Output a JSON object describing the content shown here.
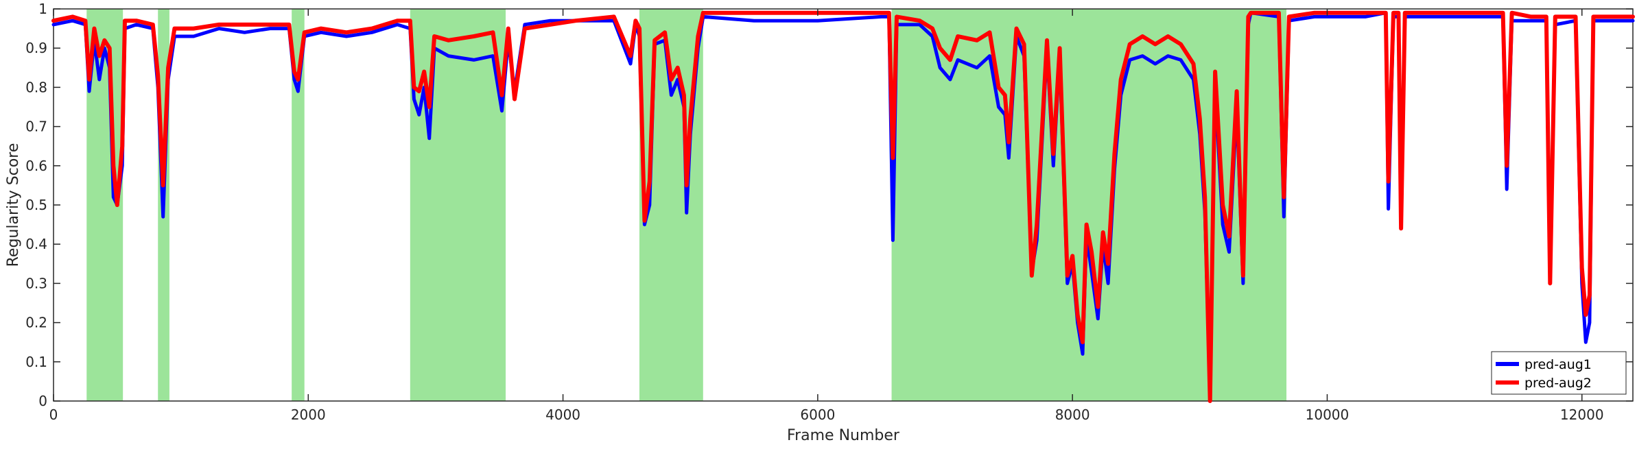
{
  "chart_data": {
    "type": "line",
    "title": "",
    "xlabel": "Frame Number",
    "ylabel": "Regularity Score",
    "xlim": [
      0,
      12400
    ],
    "ylim": [
      0,
      1
    ],
    "x_ticks": [
      0,
      2000,
      4000,
      6000,
      8000,
      10000,
      12000
    ],
    "x_tick_labels": [
      "0",
      "2000",
      "4000",
      "6000",
      "8000",
      "10000",
      "12000"
    ],
    "y_ticks": [
      0,
      0.1,
      0.2,
      0.3,
      0.4,
      0.5,
      0.6,
      0.7,
      0.8,
      0.9,
      1
    ],
    "y_tick_labels": [
      "0",
      "0.1",
      "0.2",
      "0.3",
      "0.4",
      "0.5",
      "0.6",
      "0.7",
      "0.8",
      "0.9",
      "1"
    ],
    "grid": false,
    "legend_position": "bottom-right",
    "highlight_color": "#9ce49a",
    "highlighted_ranges": [
      [
        260,
        545
      ],
      [
        820,
        910
      ],
      [
        1870,
        1970
      ],
      [
        2800,
        3550
      ],
      [
        4600,
        5100
      ],
      [
        6580,
        9680
      ]
    ],
    "series": [
      {
        "name": "pred-aug1",
        "color": "#0000ff",
        "points": [
          [
            0,
            0.96
          ],
          [
            150,
            0.97
          ],
          [
            250,
            0.96
          ],
          [
            280,
            0.79
          ],
          [
            320,
            0.92
          ],
          [
            360,
            0.82
          ],
          [
            400,
            0.9
          ],
          [
            440,
            0.85
          ],
          [
            470,
            0.52
          ],
          [
            500,
            0.5
          ],
          [
            540,
            0.6
          ],
          [
            560,
            0.95
          ],
          [
            650,
            0.96
          ],
          [
            780,
            0.95
          ],
          [
            820,
            0.8
          ],
          [
            860,
            0.47
          ],
          [
            900,
            0.82
          ],
          [
            950,
            0.93
          ],
          [
            1100,
            0.93
          ],
          [
            1300,
            0.95
          ],
          [
            1500,
            0.94
          ],
          [
            1700,
            0.95
          ],
          [
            1850,
            0.95
          ],
          [
            1890,
            0.82
          ],
          [
            1920,
            0.79
          ],
          [
            1970,
            0.93
          ],
          [
            2100,
            0.94
          ],
          [
            2300,
            0.93
          ],
          [
            2500,
            0.94
          ],
          [
            2700,
            0.96
          ],
          [
            2800,
            0.95
          ],
          [
            2830,
            0.77
          ],
          [
            2870,
            0.73
          ],
          [
            2910,
            0.8
          ],
          [
            2950,
            0.67
          ],
          [
            2990,
            0.9
          ],
          [
            3100,
            0.88
          ],
          [
            3300,
            0.87
          ],
          [
            3450,
            0.88
          ],
          [
            3520,
            0.74
          ],
          [
            3570,
            0.92
          ],
          [
            3620,
            0.79
          ],
          [
            3700,
            0.96
          ],
          [
            3900,
            0.97
          ],
          [
            4100,
            0.97
          ],
          [
            4400,
            0.97
          ],
          [
            4530,
            0.86
          ],
          [
            4570,
            0.96
          ],
          [
            4600,
            0.93
          ],
          [
            4640,
            0.45
          ],
          [
            4680,
            0.5
          ],
          [
            4720,
            0.91
          ],
          [
            4800,
            0.92
          ],
          [
            4850,
            0.78
          ],
          [
            4900,
            0.82
          ],
          [
            4950,
            0.75
          ],
          [
            4970,
            0.48
          ],
          [
            5000,
            0.68
          ],
          [
            5060,
            0.9
          ],
          [
            5100,
            0.98
          ],
          [
            5500,
            0.97
          ],
          [
            6000,
            0.97
          ],
          [
            6500,
            0.98
          ],
          [
            6560,
            0.98
          ],
          [
            6590,
            0.41
          ],
          [
            6620,
            0.96
          ],
          [
            6800,
            0.96
          ],
          [
            6900,
            0.93
          ],
          [
            6960,
            0.85
          ],
          [
            7040,
            0.82
          ],
          [
            7100,
            0.87
          ],
          [
            7250,
            0.85
          ],
          [
            7350,
            0.88
          ],
          [
            7420,
            0.75
          ],
          [
            7470,
            0.73
          ],
          [
            7500,
            0.62
          ],
          [
            7560,
            0.93
          ],
          [
            7620,
            0.88
          ],
          [
            7680,
            0.33
          ],
          [
            7720,
            0.41
          ],
          [
            7800,
            0.9
          ],
          [
            7850,
            0.6
          ],
          [
            7900,
            0.88
          ],
          [
            7960,
            0.3
          ],
          [
            8000,
            0.35
          ],
          [
            8040,
            0.2
          ],
          [
            8080,
            0.12
          ],
          [
            8110,
            0.42
          ],
          [
            8150,
            0.33
          ],
          [
            8200,
            0.21
          ],
          [
            8240,
            0.4
          ],
          [
            8280,
            0.3
          ],
          [
            8330,
            0.59
          ],
          [
            8380,
            0.78
          ],
          [
            8450,
            0.87
          ],
          [
            8550,
            0.88
          ],
          [
            8650,
            0.86
          ],
          [
            8750,
            0.88
          ],
          [
            8850,
            0.87
          ],
          [
            8950,
            0.82
          ],
          [
            9000,
            0.68
          ],
          [
            9040,
            0.48
          ],
          [
            9080,
            0.02
          ],
          [
            9120,
            0.8
          ],
          [
            9180,
            0.45
          ],
          [
            9230,
            0.38
          ],
          [
            9290,
            0.75
          ],
          [
            9340,
            0.3
          ],
          [
            9380,
            0.96
          ],
          [
            9400,
            0.99
          ],
          [
            9620,
            0.98
          ],
          [
            9660,
            0.47
          ],
          [
            9700,
            0.97
          ],
          [
            9900,
            0.98
          ],
          [
            10300,
            0.98
          ],
          [
            10460,
            0.99
          ],
          [
            10480,
            0.49
          ],
          [
            10520,
            0.98
          ],
          [
            10560,
            0.98
          ],
          [
            10580,
            0.45
          ],
          [
            10610,
            0.98
          ],
          [
            11000,
            0.98
          ],
          [
            11380,
            0.98
          ],
          [
            11410,
            0.54
          ],
          [
            11450,
            0.97
          ],
          [
            11600,
            0.97
          ],
          [
            11720,
            0.97
          ],
          [
            11750,
            0.32
          ],
          [
            11790,
            0.96
          ],
          [
            11950,
            0.97
          ],
          [
            12000,
            0.3
          ],
          [
            12030,
            0.15
          ],
          [
            12060,
            0.2
          ],
          [
            12090,
            0.97
          ],
          [
            12250,
            0.97
          ],
          [
            12400,
            0.97
          ]
        ]
      },
      {
        "name": "pred-aug2",
        "color": "#ff0000",
        "points": [
          [
            0,
            0.97
          ],
          [
            150,
            0.98
          ],
          [
            250,
            0.97
          ],
          [
            280,
            0.82
          ],
          [
            320,
            0.95
          ],
          [
            360,
            0.88
          ],
          [
            400,
            0.92
          ],
          [
            440,
            0.9
          ],
          [
            470,
            0.6
          ],
          [
            500,
            0.5
          ],
          [
            540,
            0.65
          ],
          [
            560,
            0.97
          ],
          [
            650,
            0.97
          ],
          [
            780,
            0.96
          ],
          [
            820,
            0.83
          ],
          [
            860,
            0.55
          ],
          [
            900,
            0.85
          ],
          [
            950,
            0.95
          ],
          [
            1100,
            0.95
          ],
          [
            1300,
            0.96
          ],
          [
            1500,
            0.96
          ],
          [
            1700,
            0.96
          ],
          [
            1850,
            0.96
          ],
          [
            1890,
            0.84
          ],
          [
            1920,
            0.82
          ],
          [
            1970,
            0.94
          ],
          [
            2100,
            0.95
          ],
          [
            2300,
            0.94
          ],
          [
            2500,
            0.95
          ],
          [
            2700,
            0.97
          ],
          [
            2800,
            0.97
          ],
          [
            2830,
            0.8
          ],
          [
            2870,
            0.79
          ],
          [
            2910,
            0.84
          ],
          [
            2950,
            0.75
          ],
          [
            2990,
            0.93
          ],
          [
            3100,
            0.92
          ],
          [
            3300,
            0.93
          ],
          [
            3450,
            0.94
          ],
          [
            3520,
            0.78
          ],
          [
            3570,
            0.95
          ],
          [
            3620,
            0.77
          ],
          [
            3700,
            0.95
          ],
          [
            3900,
            0.96
          ],
          [
            4100,
            0.97
          ],
          [
            4400,
            0.98
          ],
          [
            4530,
            0.88
          ],
          [
            4570,
            0.97
          ],
          [
            4600,
            0.95
          ],
          [
            4640,
            0.46
          ],
          [
            4680,
            0.56
          ],
          [
            4720,
            0.92
          ],
          [
            4800,
            0.94
          ],
          [
            4850,
            0.82
          ],
          [
            4900,
            0.85
          ],
          [
            4950,
            0.78
          ],
          [
            4970,
            0.55
          ],
          [
            5000,
            0.72
          ],
          [
            5060,
            0.93
          ],
          [
            5100,
            0.99
          ],
          [
            5500,
            0.99
          ],
          [
            6000,
            0.99
          ],
          [
            6500,
            0.99
          ],
          [
            6560,
            0.99
          ],
          [
            6590,
            0.62
          ],
          [
            6620,
            0.98
          ],
          [
            6800,
            0.97
          ],
          [
            6900,
            0.95
          ],
          [
            6960,
            0.9
          ],
          [
            7040,
            0.87
          ],
          [
            7100,
            0.93
          ],
          [
            7250,
            0.92
          ],
          [
            7350,
            0.94
          ],
          [
            7420,
            0.8
          ],
          [
            7470,
            0.78
          ],
          [
            7500,
            0.66
          ],
          [
            7560,
            0.95
          ],
          [
            7620,
            0.91
          ],
          [
            7680,
            0.32
          ],
          [
            7720,
            0.45
          ],
          [
            7800,
            0.92
          ],
          [
            7850,
            0.63
          ],
          [
            7900,
            0.9
          ],
          [
            7960,
            0.32
          ],
          [
            8000,
            0.37
          ],
          [
            8040,
            0.22
          ],
          [
            8080,
            0.15
          ],
          [
            8110,
            0.45
          ],
          [
            8150,
            0.38
          ],
          [
            8200,
            0.24
          ],
          [
            8240,
            0.43
          ],
          [
            8280,
            0.35
          ],
          [
            8330,
            0.63
          ],
          [
            8380,
            0.82
          ],
          [
            8450,
            0.91
          ],
          [
            8550,
            0.93
          ],
          [
            8650,
            0.91
          ],
          [
            8750,
            0.93
          ],
          [
            8850,
            0.91
          ],
          [
            8950,
            0.86
          ],
          [
            9000,
            0.72
          ],
          [
            9040,
            0.52
          ],
          [
            9080,
            0.0
          ],
          [
            9120,
            0.84
          ],
          [
            9180,
            0.5
          ],
          [
            9230,
            0.42
          ],
          [
            9290,
            0.79
          ],
          [
            9340,
            0.32
          ],
          [
            9380,
            0.98
          ],
          [
            9400,
            0.99
          ],
          [
            9620,
            0.99
          ],
          [
            9660,
            0.52
          ],
          [
            9700,
            0.98
          ],
          [
            9900,
            0.99
          ],
          [
            10300,
            0.99
          ],
          [
            10460,
            0.99
          ],
          [
            10480,
            0.56
          ],
          [
            10520,
            0.99
          ],
          [
            10560,
            0.99
          ],
          [
            10580,
            0.44
          ],
          [
            10610,
            0.99
          ],
          [
            11000,
            0.99
          ],
          [
            11380,
            0.99
          ],
          [
            11410,
            0.6
          ],
          [
            11450,
            0.99
          ],
          [
            11600,
            0.98
          ],
          [
            11720,
            0.98
          ],
          [
            11750,
            0.3
          ],
          [
            11790,
            0.98
          ],
          [
            11950,
            0.98
          ],
          [
            12000,
            0.34
          ],
          [
            12030,
            0.22
          ],
          [
            12060,
            0.27
          ],
          [
            12090,
            0.98
          ],
          [
            12250,
            0.98
          ],
          [
            12400,
            0.98
          ]
        ]
      }
    ]
  }
}
